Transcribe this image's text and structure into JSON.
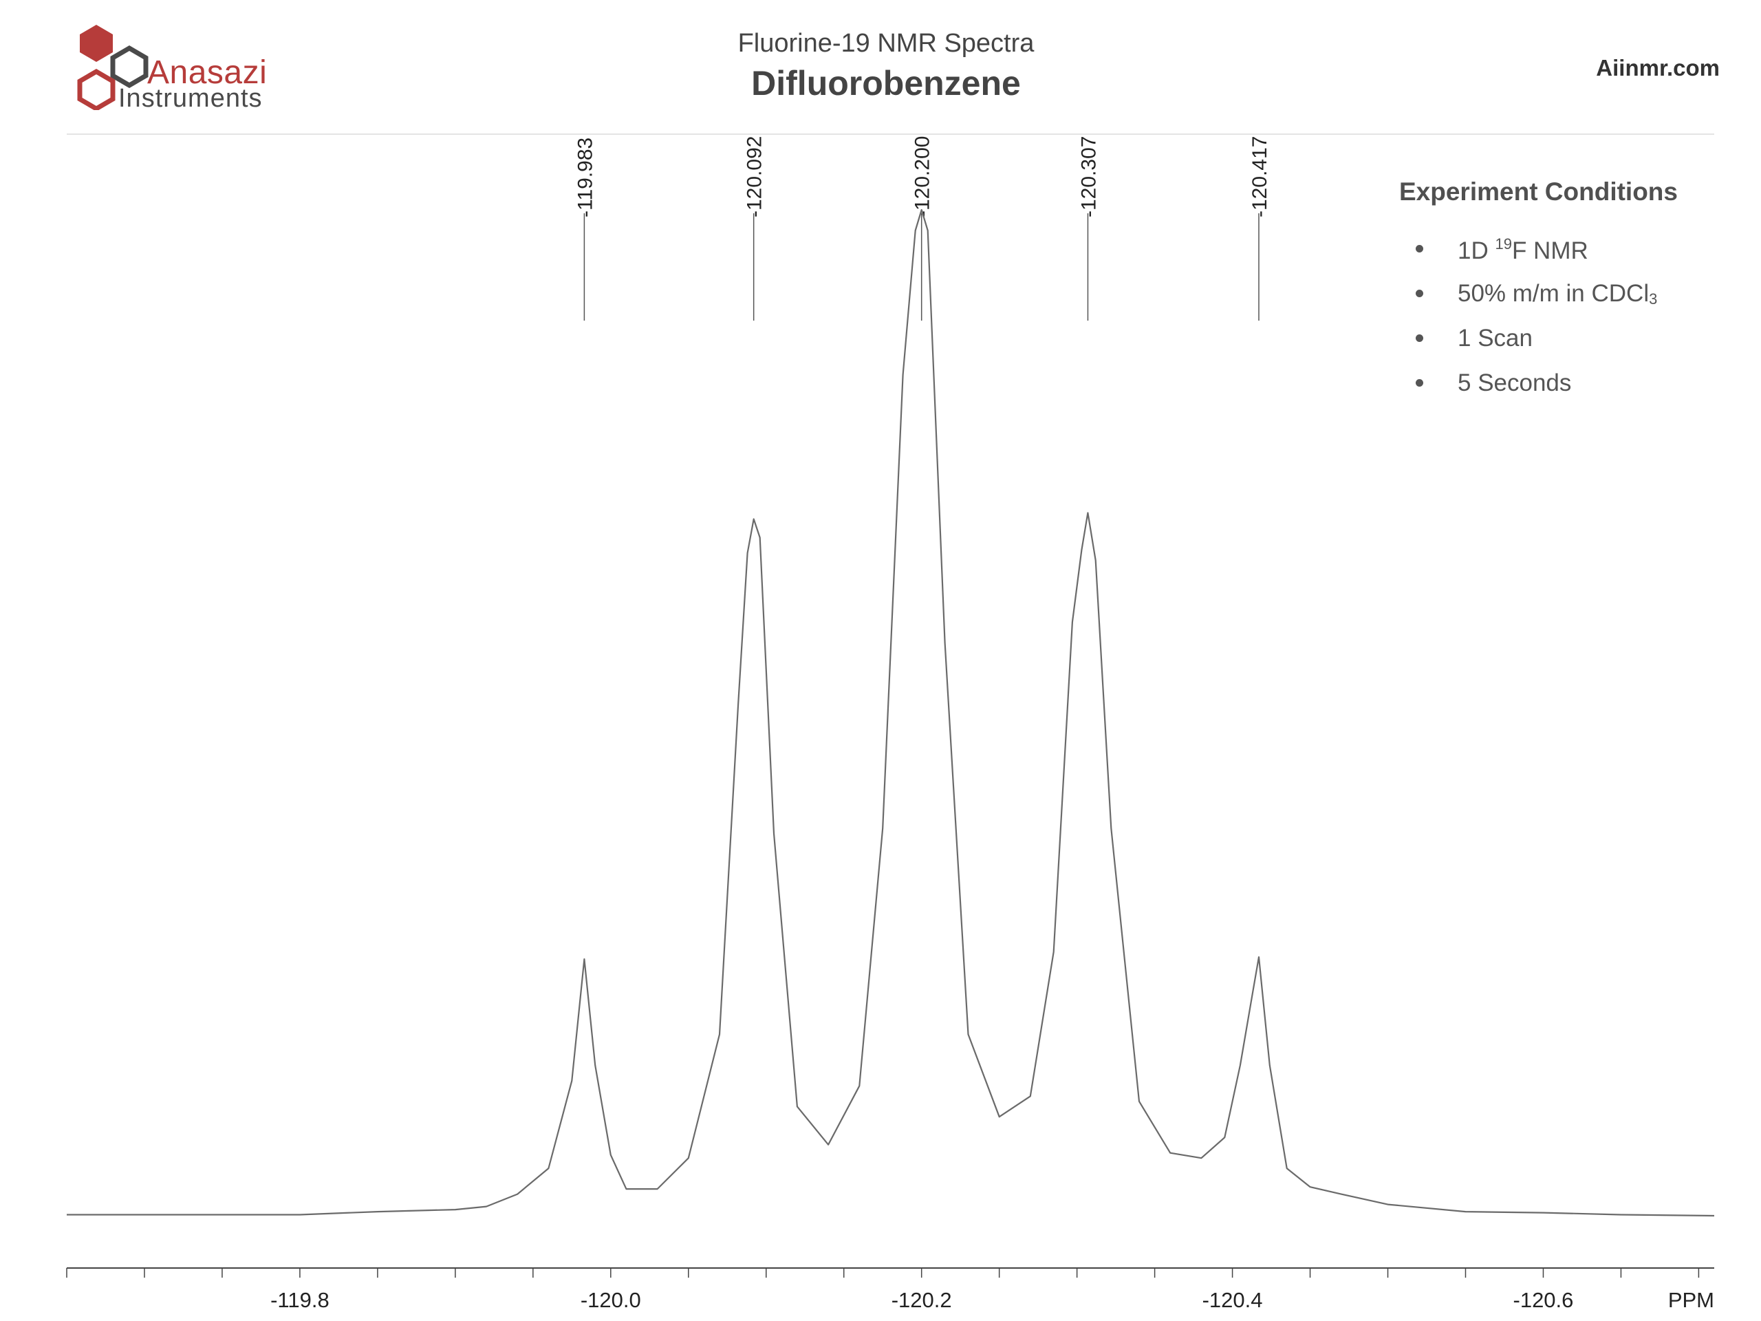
{
  "header": {
    "logo_name": "Anasazi",
    "logo_sub": "Instruments",
    "subtitle": "Fluorine-19 NMR Spectra",
    "title": "Difluorobenzene",
    "site": "Aiinmr.com"
  },
  "conditions": {
    "heading": "Experiment Conditions",
    "items": [
      {
        "pre": "1D ",
        "sup": "19",
        "post": "F NMR"
      },
      {
        "pre": "50% m/m in CDCl",
        "sub": "3",
        "post": ""
      },
      {
        "pre": "1 Scan"
      },
      {
        "pre": "5 Seconds"
      }
    ]
  },
  "colors": {
    "logo_red": "#b63c3a",
    "logo_gray": "#4a4a4a",
    "trace": "#6a6a6a",
    "axis": "#444444"
  },
  "chart_data": {
    "type": "line",
    "title": "Difluorobenzene",
    "subtitle": "Fluorine-19 NMR Spectra",
    "xlabel": "PPM",
    "x_reversed": true,
    "xlim": [
      -119.65,
      -120.71
    ],
    "ylim": [
      0,
      1
    ],
    "xticks_major": [
      -119.8,
      -120.0,
      -120.2,
      -120.4,
      -120.6
    ],
    "xtick_labels": [
      "-119.8",
      "-120.0",
      "-120.2",
      "-120.4",
      "-120.6"
    ],
    "xticks_minor_step": 0.05,
    "grid": false,
    "legend": "none",
    "peak_labels": [
      "-119.983",
      "-120.092",
      "-120.200",
      "-120.307",
      "-120.417"
    ],
    "peaks": [
      {
        "x": -119.983,
        "height": 0.273
      },
      {
        "x": -120.092,
        "height": 0.7
      },
      {
        "x": -120.2,
        "height": 1.0
      },
      {
        "x": -120.307,
        "height": 0.706
      },
      {
        "x": -120.417,
        "height": 0.275
      }
    ],
    "series": [
      {
        "values": [
          [
            -119.65,
            0.025
          ],
          [
            -119.7,
            0.025
          ],
          [
            -119.75,
            0.025
          ],
          [
            -119.8,
            0.025
          ],
          [
            -119.85,
            0.028
          ],
          [
            -119.9,
            0.03
          ],
          [
            -119.92,
            0.033
          ],
          [
            -119.94,
            0.045
          ],
          [
            -119.96,
            0.07
          ],
          [
            -119.975,
            0.155
          ],
          [
            -119.983,
            0.273
          ],
          [
            -119.99,
            0.17
          ],
          [
            -120.0,
            0.083
          ],
          [
            -120.01,
            0.05
          ],
          [
            -120.03,
            0.05
          ],
          [
            -120.05,
            0.08
          ],
          [
            -120.07,
            0.2
          ],
          [
            -120.082,
            0.52
          ],
          [
            -120.088,
            0.667
          ],
          [
            -120.092,
            0.7
          ],
          [
            -120.096,
            0.682
          ],
          [
            -120.105,
            0.395
          ],
          [
            -120.12,
            0.13
          ],
          [
            -120.14,
            0.093
          ],
          [
            -120.16,
            0.15
          ],
          [
            -120.175,
            0.4
          ],
          [
            -120.188,
            0.84
          ],
          [
            -120.196,
            0.98
          ],
          [
            -120.2,
            1.0
          ],
          [
            -120.204,
            0.98
          ],
          [
            -120.215,
            0.58
          ],
          [
            -120.23,
            0.2
          ],
          [
            -120.25,
            0.12
          ],
          [
            -120.27,
            0.14
          ],
          [
            -120.285,
            0.28
          ],
          [
            -120.297,
            0.6
          ],
          [
            -120.303,
            0.67
          ],
          [
            -120.307,
            0.706
          ],
          [
            -120.312,
            0.66
          ],
          [
            -120.322,
            0.4
          ],
          [
            -120.34,
            0.135
          ],
          [
            -120.36,
            0.085
          ],
          [
            -120.38,
            0.08
          ],
          [
            -120.395,
            0.1
          ],
          [
            -120.405,
            0.17
          ],
          [
            -120.413,
            0.24
          ],
          [
            -120.417,
            0.275
          ],
          [
            -120.424,
            0.17
          ],
          [
            -120.435,
            0.07
          ],
          [
            -120.45,
            0.052
          ],
          [
            -120.47,
            0.045
          ],
          [
            -120.5,
            0.035
          ],
          [
            -120.55,
            0.028
          ],
          [
            -120.6,
            0.027
          ],
          [
            -120.65,
            0.025
          ],
          [
            -120.71,
            0.024
          ]
        ]
      }
    ]
  }
}
